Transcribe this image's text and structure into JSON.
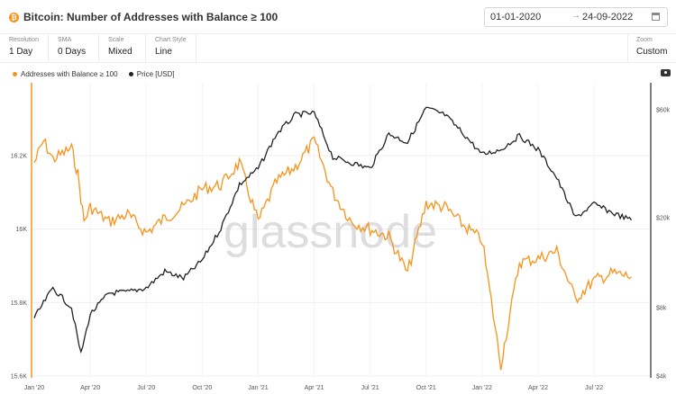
{
  "header": {
    "title": "Bitcoin: Number of Addresses with Balance ≥ 100",
    "icon": "bitcoin-icon",
    "date_from": "01-01-2020",
    "date_arrow": "→",
    "date_to": "24-09-2022"
  },
  "controls": [
    {
      "label": "Resolution",
      "value": "1 Day"
    },
    {
      "label": "SMA",
      "value": "0 Days"
    },
    {
      "label": "Scale",
      "value": "Mixed"
    },
    {
      "label": "Chart Style",
      "value": "Line"
    }
  ],
  "zoom": {
    "label": "Zoom",
    "value": "Custom"
  },
  "watermark": "glassnode",
  "colors": {
    "addresses": "#f7931a",
    "price": "#222222",
    "accent": "#f7931a"
  },
  "chart_data": {
    "type": "line",
    "legend": [
      "Addresses with Balance ≥ 100",
      "Price [USD]"
    ],
    "legend_position": "top-left",
    "x_ticks": [
      "Jan '20",
      "Apr '20",
      "Jul '20",
      "Oct '20",
      "Jan '21",
      "Apr '21",
      "Jul '21",
      "Oct '21",
      "Jan '22",
      "Apr '22",
      "Jul '22"
    ],
    "y_left": {
      "ticks": [
        "15.6K",
        "15.8K",
        "16K",
        "16.2K"
      ],
      "values": [
        15600,
        15800,
        16000,
        16200
      ]
    },
    "y_right": {
      "ticks": [
        "$4k",
        "$8k",
        "$20k",
        "$60k"
      ],
      "values": [
        4000,
        8000,
        20000,
        60000
      ],
      "scale": "log"
    },
    "grid": true,
    "series": [
      {
        "name": "Addresses with Balance ≥ 100",
        "axis": "left",
        "x": [
          "2020-01",
          "2020-01",
          "2020-02",
          "2020-03",
          "2020-03",
          "2020-03",
          "2020-04",
          "2020-05",
          "2020-06",
          "2020-07",
          "2020-08",
          "2020-09",
          "2020-10",
          "2020-11",
          "2020-12",
          "2021-01",
          "2021-02",
          "2021-03",
          "2021-04",
          "2021-05",
          "2021-06",
          "2021-07",
          "2021-08",
          "2021-09",
          "2021-10",
          "2021-11",
          "2021-12",
          "2022-01",
          "2022-02",
          "2022-03",
          "2022-04",
          "2022-05",
          "2022-06",
          "2022-07",
          "2022-08",
          "2022-09"
        ],
        "values": [
          16180,
          16240,
          16190,
          16220,
          16150,
          16020,
          16060,
          16020,
          16040,
          15990,
          16030,
          16060,
          16110,
          16120,
          16180,
          16020,
          16130,
          16170,
          16240,
          16100,
          16020,
          16000,
          15980,
          15880,
          16070,
          16060,
          16010,
          15970,
          15630,
          15910,
          15920,
          15940,
          15810,
          15860,
          15880,
          15870
        ]
      },
      {
        "name": "Price [USD]",
        "axis": "right",
        "x": [
          "2020-01",
          "2020-02",
          "2020-03",
          "2020-03",
          "2020-04",
          "2020-05",
          "2020-06",
          "2020-07",
          "2020-08",
          "2020-09",
          "2020-10",
          "2020-11",
          "2020-12",
          "2021-01",
          "2021-02",
          "2021-03",
          "2021-04",
          "2021-05",
          "2021-06",
          "2021-07",
          "2021-08",
          "2021-09",
          "2021-10",
          "2021-11",
          "2021-12",
          "2022-01",
          "2022-02",
          "2022-03",
          "2022-04",
          "2022-05",
          "2022-06",
          "2022-07",
          "2022-08",
          "2022-09"
        ],
        "values": [
          7200,
          9800,
          8000,
          5000,
          7500,
          9300,
          9400,
          9800,
          11600,
          10800,
          13000,
          18000,
          28000,
          33000,
          47000,
          57000,
          58000,
          37000,
          35000,
          33000,
          47000,
          43000,
          61000,
          57000,
          47000,
          38000,
          40000,
          46000,
          40000,
          30000,
          20000,
          23000,
          21000,
          19500
        ]
      }
    ]
  }
}
